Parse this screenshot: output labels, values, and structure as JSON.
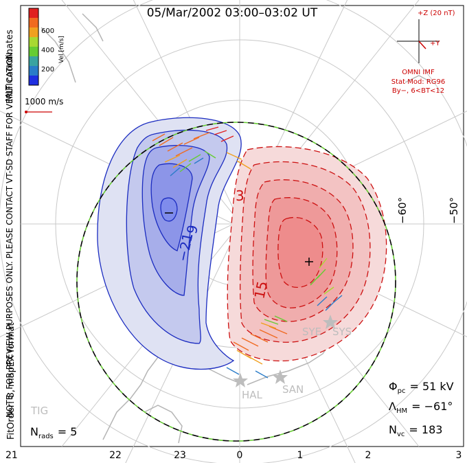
{
  "title": "05/Mar/2002 03:00–03:02 UT",
  "side_notes": {
    "coords": "MLT coordinates",
    "preview": "NOTE: FOR PREVIEW PURPOSES ONLY. PLEASE CONTACT VT-SD STAFF FOR VERIFICATION.",
    "fitorder": "FitOrder: 8, mapEX format"
  },
  "colorbar": {
    "label": "Vel [m/s]",
    "ticks": [
      "600",
      "400",
      "200"
    ],
    "colors": [
      "#1f2fe0",
      "#2a7cc8",
      "#3aa3a0",
      "#66cc33",
      "#a8d832",
      "#f0a020",
      "#f06a20",
      "#e02020"
    ]
  },
  "scale_vector": {
    "label": "1000 m/s",
    "color": "#cc0000"
  },
  "imf": {
    "z_label": "+Z (20 nT)",
    "y_label": "+Y",
    "source": "OMNI IMF",
    "model": "Stat Mod: RG96",
    "condition": "By−, 6<BT<12",
    "color": "#cc0000"
  },
  "lat_labels": [
    "−60°",
    "−50°"
  ],
  "contour_labels": [
    "3",
    "−9",
    "−21",
    "15"
  ],
  "radars": [
    "HAL",
    "SAN",
    "SYE",
    "SYS",
    "TIG"
  ],
  "bottom_axis": [
    "21",
    "22",
    "23",
    "0",
    "1",
    "2",
    "3"
  ],
  "stats": {
    "phi_pc": {
      "symbol": "Φ",
      "sub": "pc",
      "value": "= 51 kV"
    },
    "lambda_hm": {
      "symbol": "Λ",
      "sub": "HM",
      "value": "= −61°"
    },
    "n_vc": {
      "symbol": "N",
      "sub": "vc",
      "value": "= 183"
    },
    "n_rads": {
      "symbol": "N",
      "sub": "rads",
      "value": "= 5"
    }
  },
  "colors": {
    "negative_cell_fill": "#7f8cec",
    "positive_cell_fill": "#ee8c8c",
    "negative_contour": "#1a2bc0",
    "positive_contour": "#cc1010",
    "boundary": "#66cc33",
    "grid": "#c8c8c8"
  }
}
